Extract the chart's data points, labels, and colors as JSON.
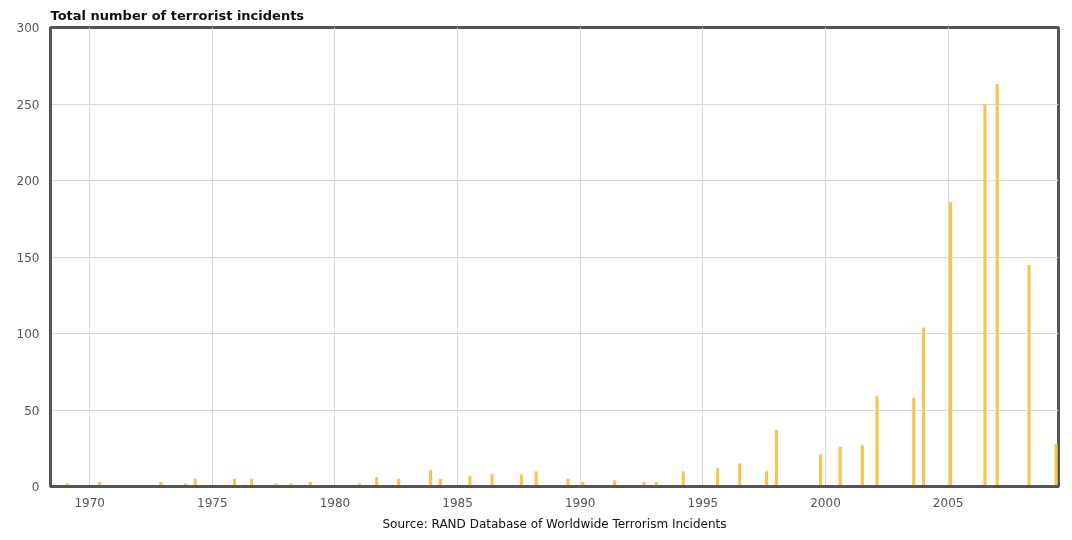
{
  "chart_data": {
    "type": "bar",
    "title": "Total number of terrorist incidents",
    "x": [
      1969.1,
      1970.4,
      1972.9,
      1973.9,
      1974.3,
      1975.9,
      1976.6,
      1977.6,
      1978.2,
      1979.0,
      1981.0,
      1981.7,
      1982.6,
      1983.9,
      1984.3,
      1985.5,
      1986.4,
      1987.6,
      1988.2,
      1989.5,
      1990.1,
      1991.4,
      1992.6,
      1993.1,
      1994.2,
      1995.6,
      1996.5,
      1997.6,
      1998.0,
      1999.8,
      2000.6,
      2001.5,
      2002.1,
      2003.6,
      2004.0,
      2005.1,
      2006.5,
      2007.0,
      2008.3,
      2009.4
    ],
    "values": [
      2,
      3,
      3,
      2,
      5,
      5,
      5,
      2,
      2,
      3,
      2,
      6,
      5,
      11,
      5,
      7,
      8,
      8,
      10,
      5,
      3,
      4,
      3,
      3,
      10,
      12,
      15,
      10,
      37,
      21,
      26,
      27,
      59,
      58,
      104,
      186,
      250,
      263,
      145,
      28
    ],
    "color": "#f2c654",
    "xlim": [
      1968.4,
      2009.5
    ],
    "xticks": [
      1970,
      1975,
      1980,
      1985,
      1990,
      1995,
      2000,
      2005
    ],
    "ylim": [
      0,
      300
    ],
    "yticks": [
      0,
      50,
      100,
      150,
      200,
      250,
      300
    ],
    "grid": true,
    "annotations": [
      "Source: RAND Database of Worldwide Terrorism Incidents"
    ]
  }
}
